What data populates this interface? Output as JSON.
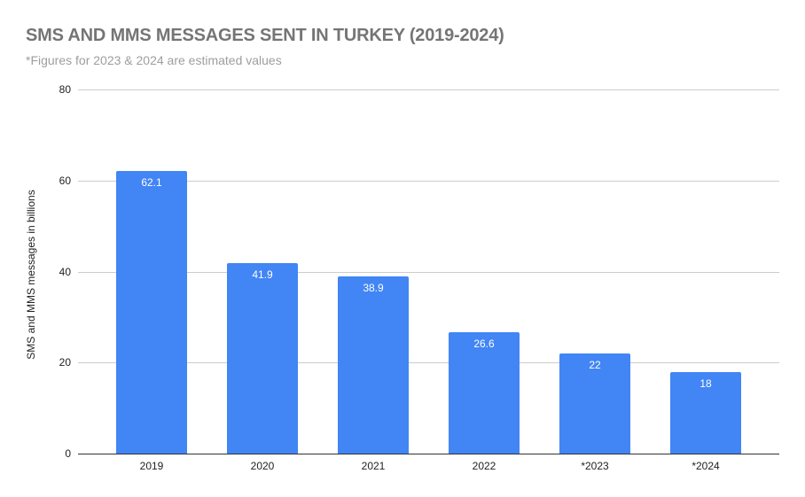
{
  "chart": {
    "title": "SMS AND MMS MESSAGES SENT IN TURKEY (2019-2024)",
    "subtitle": "*Figures for 2023 & 2024 are estimated values",
    "ylabel": "SMS and MMS messages in billions",
    "bar_color": "#4285f4",
    "y_ticks": [
      "0",
      "20",
      "40",
      "60",
      "80"
    ],
    "bars": [
      {
        "category": "2019",
        "value": 62.1,
        "label": "62.1"
      },
      {
        "category": "2020",
        "value": 41.9,
        "label": "41.9"
      },
      {
        "category": "2021",
        "value": 38.9,
        "label": "38.9"
      },
      {
        "category": "2022",
        "value": 26.6,
        "label": "26.6"
      },
      {
        "category": "*2023",
        "value": 22,
        "label": "22"
      },
      {
        "category": "*2024",
        "value": 18,
        "label": "18"
      }
    ]
  },
  "chart_data": {
    "type": "bar",
    "title": "SMS AND MMS MESSAGES SENT IN TURKEY (2019-2024)",
    "subtitle": "*Figures for 2023 & 2024 are estimated values",
    "categories": [
      "2019",
      "2020",
      "2021",
      "2022",
      "*2023",
      "*2024"
    ],
    "values": [
      62.1,
      41.9,
      38.9,
      26.6,
      22,
      18
    ],
    "xlabel": "",
    "ylabel": "SMS and MMS messages in billions",
    "ylim": [
      0,
      80
    ],
    "yticks": [
      0,
      20,
      40,
      60,
      80
    ],
    "grid": true,
    "legend": null,
    "data_labels": true
  }
}
